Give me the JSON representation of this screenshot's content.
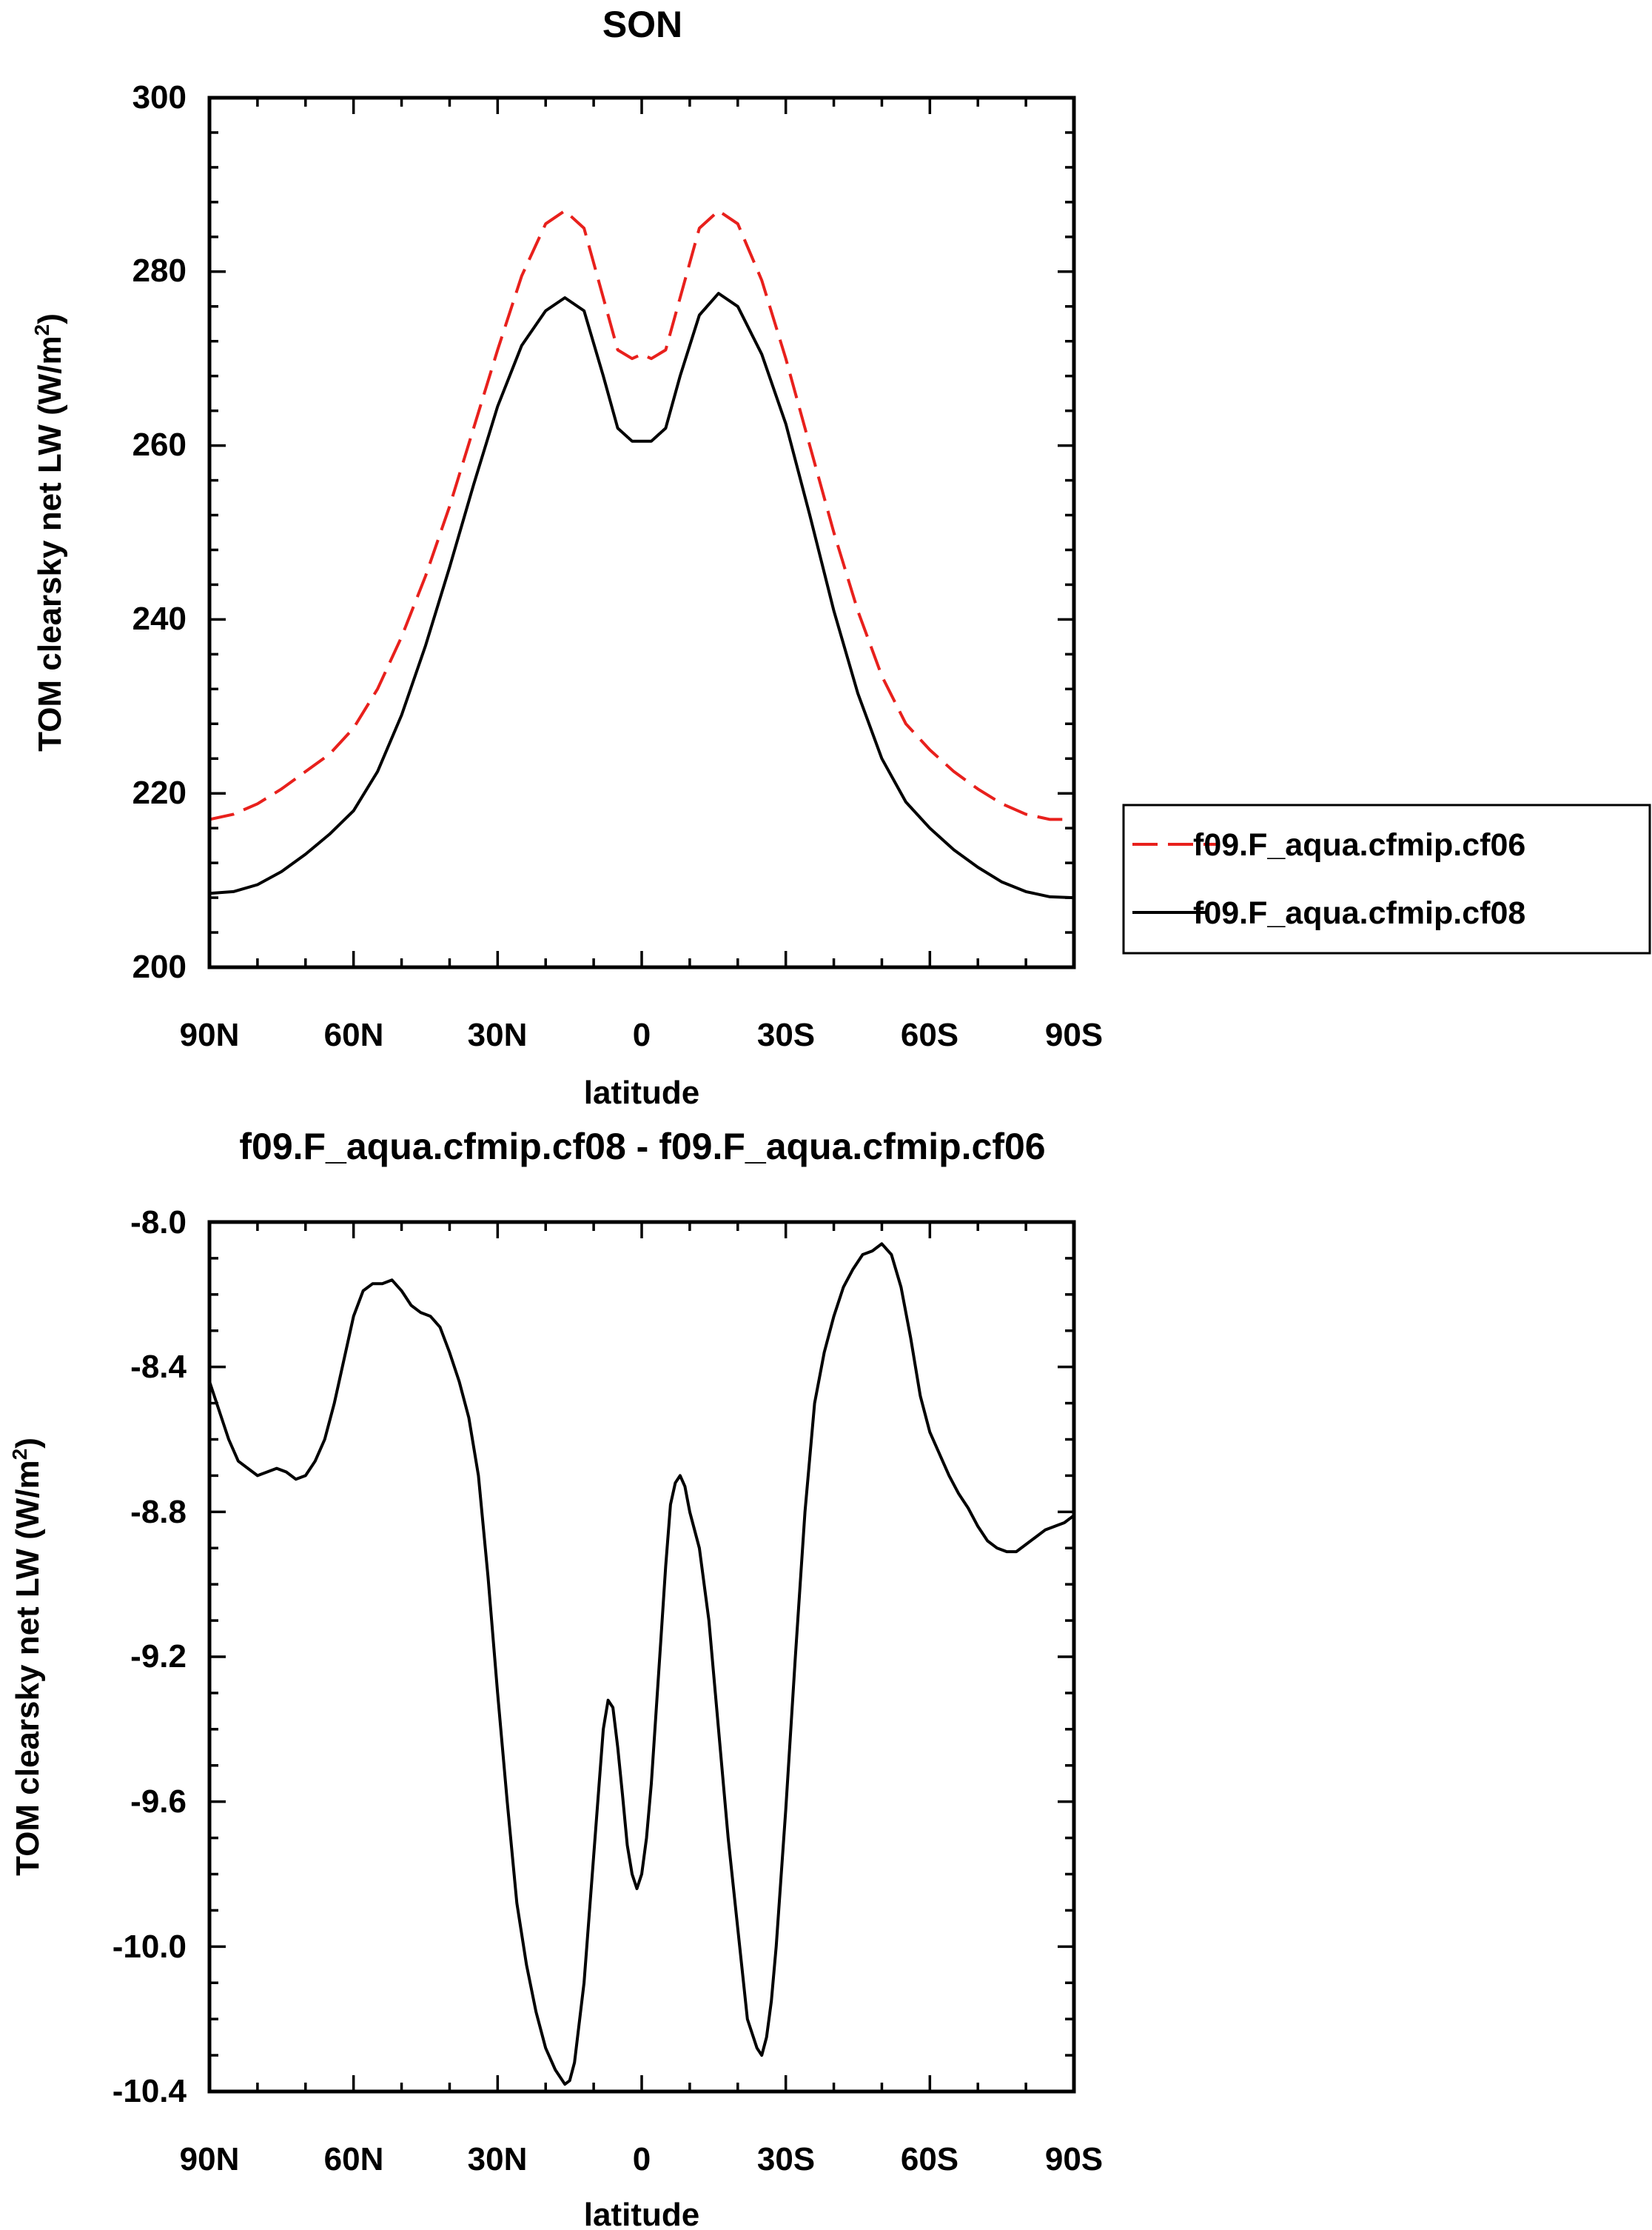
{
  "chart_data": [
    {
      "type": "line",
      "title": "SON",
      "xlabel": "latitude",
      "ylabel": "TOM clearsky net LW (W/m2)",
      "ylabel_parts": {
        "main": "TOM clearsky net LW (W/m",
        "sup": "2",
        "end": ")"
      },
      "ylim": [
        200,
        300
      ],
      "yticks": [
        200,
        220,
        240,
        260,
        280,
        300
      ],
      "ytick_labels": [
        "200",
        "220",
        "240",
        "260",
        "280",
        "300"
      ],
      "xlim": [
        -90,
        90
      ],
      "xticks": [
        -90,
        -60,
        -30,
        0,
        30,
        60,
        90
      ],
      "xtick_labels": [
        "90N",
        "60N",
        "30N",
        "0",
        "30S",
        "60S",
        "90S"
      ],
      "x": [
        -90,
        -85,
        -80,
        -75,
        -70,
        -65,
        -60,
        -55,
        -50,
        -45,
        -40,
        -35,
        -30,
        -25,
        -20,
        -16,
        -12,
        -8,
        -5,
        -2,
        0,
        2,
        5,
        8,
        12,
        16,
        20,
        25,
        30,
        35,
        40,
        45,
        50,
        55,
        60,
        65,
        70,
        75,
        80,
        85,
        90
      ],
      "series": [
        {
          "name": "f09.F_aqua.cfmip.cf06",
          "color": "#e8201c",
          "dash": true,
          "values": [
            217.0,
            217.6,
            218.8,
            220.5,
            222.5,
            224.5,
            227.5,
            232.0,
            238.0,
            245.0,
            253.0,
            262.0,
            271.0,
            279.5,
            285.5,
            287.0,
            285.0,
            277.0,
            271.0,
            270.0,
            270.5,
            270.0,
            271.0,
            277.0,
            285.0,
            287.0,
            285.5,
            279.0,
            270.0,
            260.0,
            250.0,
            241.0,
            233.5,
            228.0,
            225.0,
            222.5,
            220.5,
            218.8,
            217.6,
            217.0,
            217.0
          ]
        },
        {
          "name": "f09.F_aqua.cfmip.cf08",
          "color": "#000000",
          "dash": false,
          "values": [
            208.5,
            208.7,
            209.5,
            211.0,
            213.0,
            215.3,
            218.0,
            222.5,
            229.0,
            237.0,
            246.0,
            255.5,
            264.5,
            271.5,
            275.5,
            277.0,
            275.5,
            268.0,
            262.0,
            260.5,
            260.5,
            260.5,
            262.0,
            268.0,
            275.0,
            277.5,
            276.0,
            270.5,
            262.5,
            252.0,
            241.0,
            231.5,
            224.0,
            219.0,
            216.0,
            213.5,
            211.5,
            209.8,
            208.7,
            208.1,
            208.0
          ]
        }
      ],
      "legend": {
        "placement": "right",
        "entries": [
          "f09.F_aqua.cfmip.cf06",
          "f09.F_aqua.cfmip.cf08"
        ]
      }
    },
    {
      "type": "line",
      "title": "f09.F_aqua.cfmip.cf08 - f09.F_aqua.cfmip.cf06",
      "xlabel": "latitude",
      "ylabel": "TOM clearsky net LW (W/m2)",
      "ylabel_parts": {
        "main": "TOM clearsky net LW (W/m",
        "sup": "2",
        "end": ")"
      },
      "ylim": [
        -10.4,
        -8.0
      ],
      "yticks": [
        -10.4,
        -10.0,
        -9.6,
        -9.2,
        -8.8,
        -8.4,
        -8.0
      ],
      "ytick_labels": [
        "-10.4",
        "-10.0",
        "-9.6",
        "-9.2",
        "-8.8",
        "-8.4",
        "-8.0"
      ],
      "xlim": [
        -90,
        90
      ],
      "xticks": [
        -90,
        -60,
        -30,
        0,
        30,
        60,
        90
      ],
      "xtick_labels": [
        "90N",
        "60N",
        "30N",
        "0",
        "30S",
        "60S",
        "90S"
      ],
      "x": [
        -90,
        -88,
        -86,
        -84,
        -82,
        -80,
        -78,
        -76,
        -74,
        -72,
        -70,
        -68,
        -66,
        -64,
        -62,
        -60,
        -58,
        -56,
        -54,
        -52,
        -50,
        -48,
        -46,
        -44,
        -42,
        -40,
        -38,
        -36,
        -34,
        -32,
        -30,
        -28,
        -26,
        -24,
        -22,
        -20,
        -18,
        -16,
        -15,
        -14,
        -12,
        -10,
        -8,
        -7,
        -6,
        -5,
        -4,
        -3,
        -2,
        -1,
        0,
        1,
        2,
        3,
        4,
        5,
        6,
        7,
        8,
        9,
        10,
        12,
        14,
        16,
        18,
        20,
        22,
        24,
        25,
        26,
        27,
        28,
        30,
        32,
        34,
        36,
        38,
        40,
        42,
        44,
        46,
        48,
        50,
        52,
        54,
        56,
        58,
        60,
        62,
        64,
        66,
        68,
        70,
        72,
        74,
        76,
        78,
        80,
        82,
        84,
        86,
        88,
        90
      ],
      "series": [
        {
          "name": "f09.F_aqua.cfmip.cf08 - f09.F_aqua.cfmip.cf06",
          "color": "#000000",
          "dash": false,
          "values": [
            -8.44,
            -8.52,
            -8.6,
            -8.66,
            -8.68,
            -8.7,
            -8.69,
            -8.68,
            -8.69,
            -8.71,
            -8.7,
            -8.66,
            -8.6,
            -8.5,
            -8.38,
            -8.26,
            -8.19,
            -8.17,
            -8.17,
            -8.16,
            -8.19,
            -8.23,
            -8.25,
            -8.26,
            -8.29,
            -8.36,
            -8.44,
            -8.54,
            -8.7,
            -8.98,
            -9.3,
            -9.6,
            -9.88,
            -10.05,
            -10.18,
            -10.28,
            -10.34,
            -10.38,
            -10.37,
            -10.32,
            -10.1,
            -9.75,
            -9.4,
            -9.32,
            -9.34,
            -9.45,
            -9.58,
            -9.72,
            -9.8,
            -9.84,
            -9.8,
            -9.7,
            -9.55,
            -9.35,
            -9.15,
            -8.95,
            -8.78,
            -8.72,
            -8.7,
            -8.73,
            -8.8,
            -8.9,
            -9.1,
            -9.4,
            -9.7,
            -9.95,
            -10.2,
            -10.28,
            -10.3,
            -10.25,
            -10.15,
            -10.0,
            -9.62,
            -9.2,
            -8.8,
            -8.5,
            -8.36,
            -8.26,
            -8.18,
            -8.13,
            -8.09,
            -8.08,
            -8.06,
            -8.09,
            -8.18,
            -8.32,
            -8.48,
            -8.58,
            -8.64,
            -8.7,
            -8.75,
            -8.79,
            -8.84,
            -8.88,
            -8.9,
            -8.91,
            -8.91,
            -8.89,
            -8.87,
            -8.85,
            -8.84,
            -8.83,
            -8.81
          ]
        }
      ]
    }
  ]
}
